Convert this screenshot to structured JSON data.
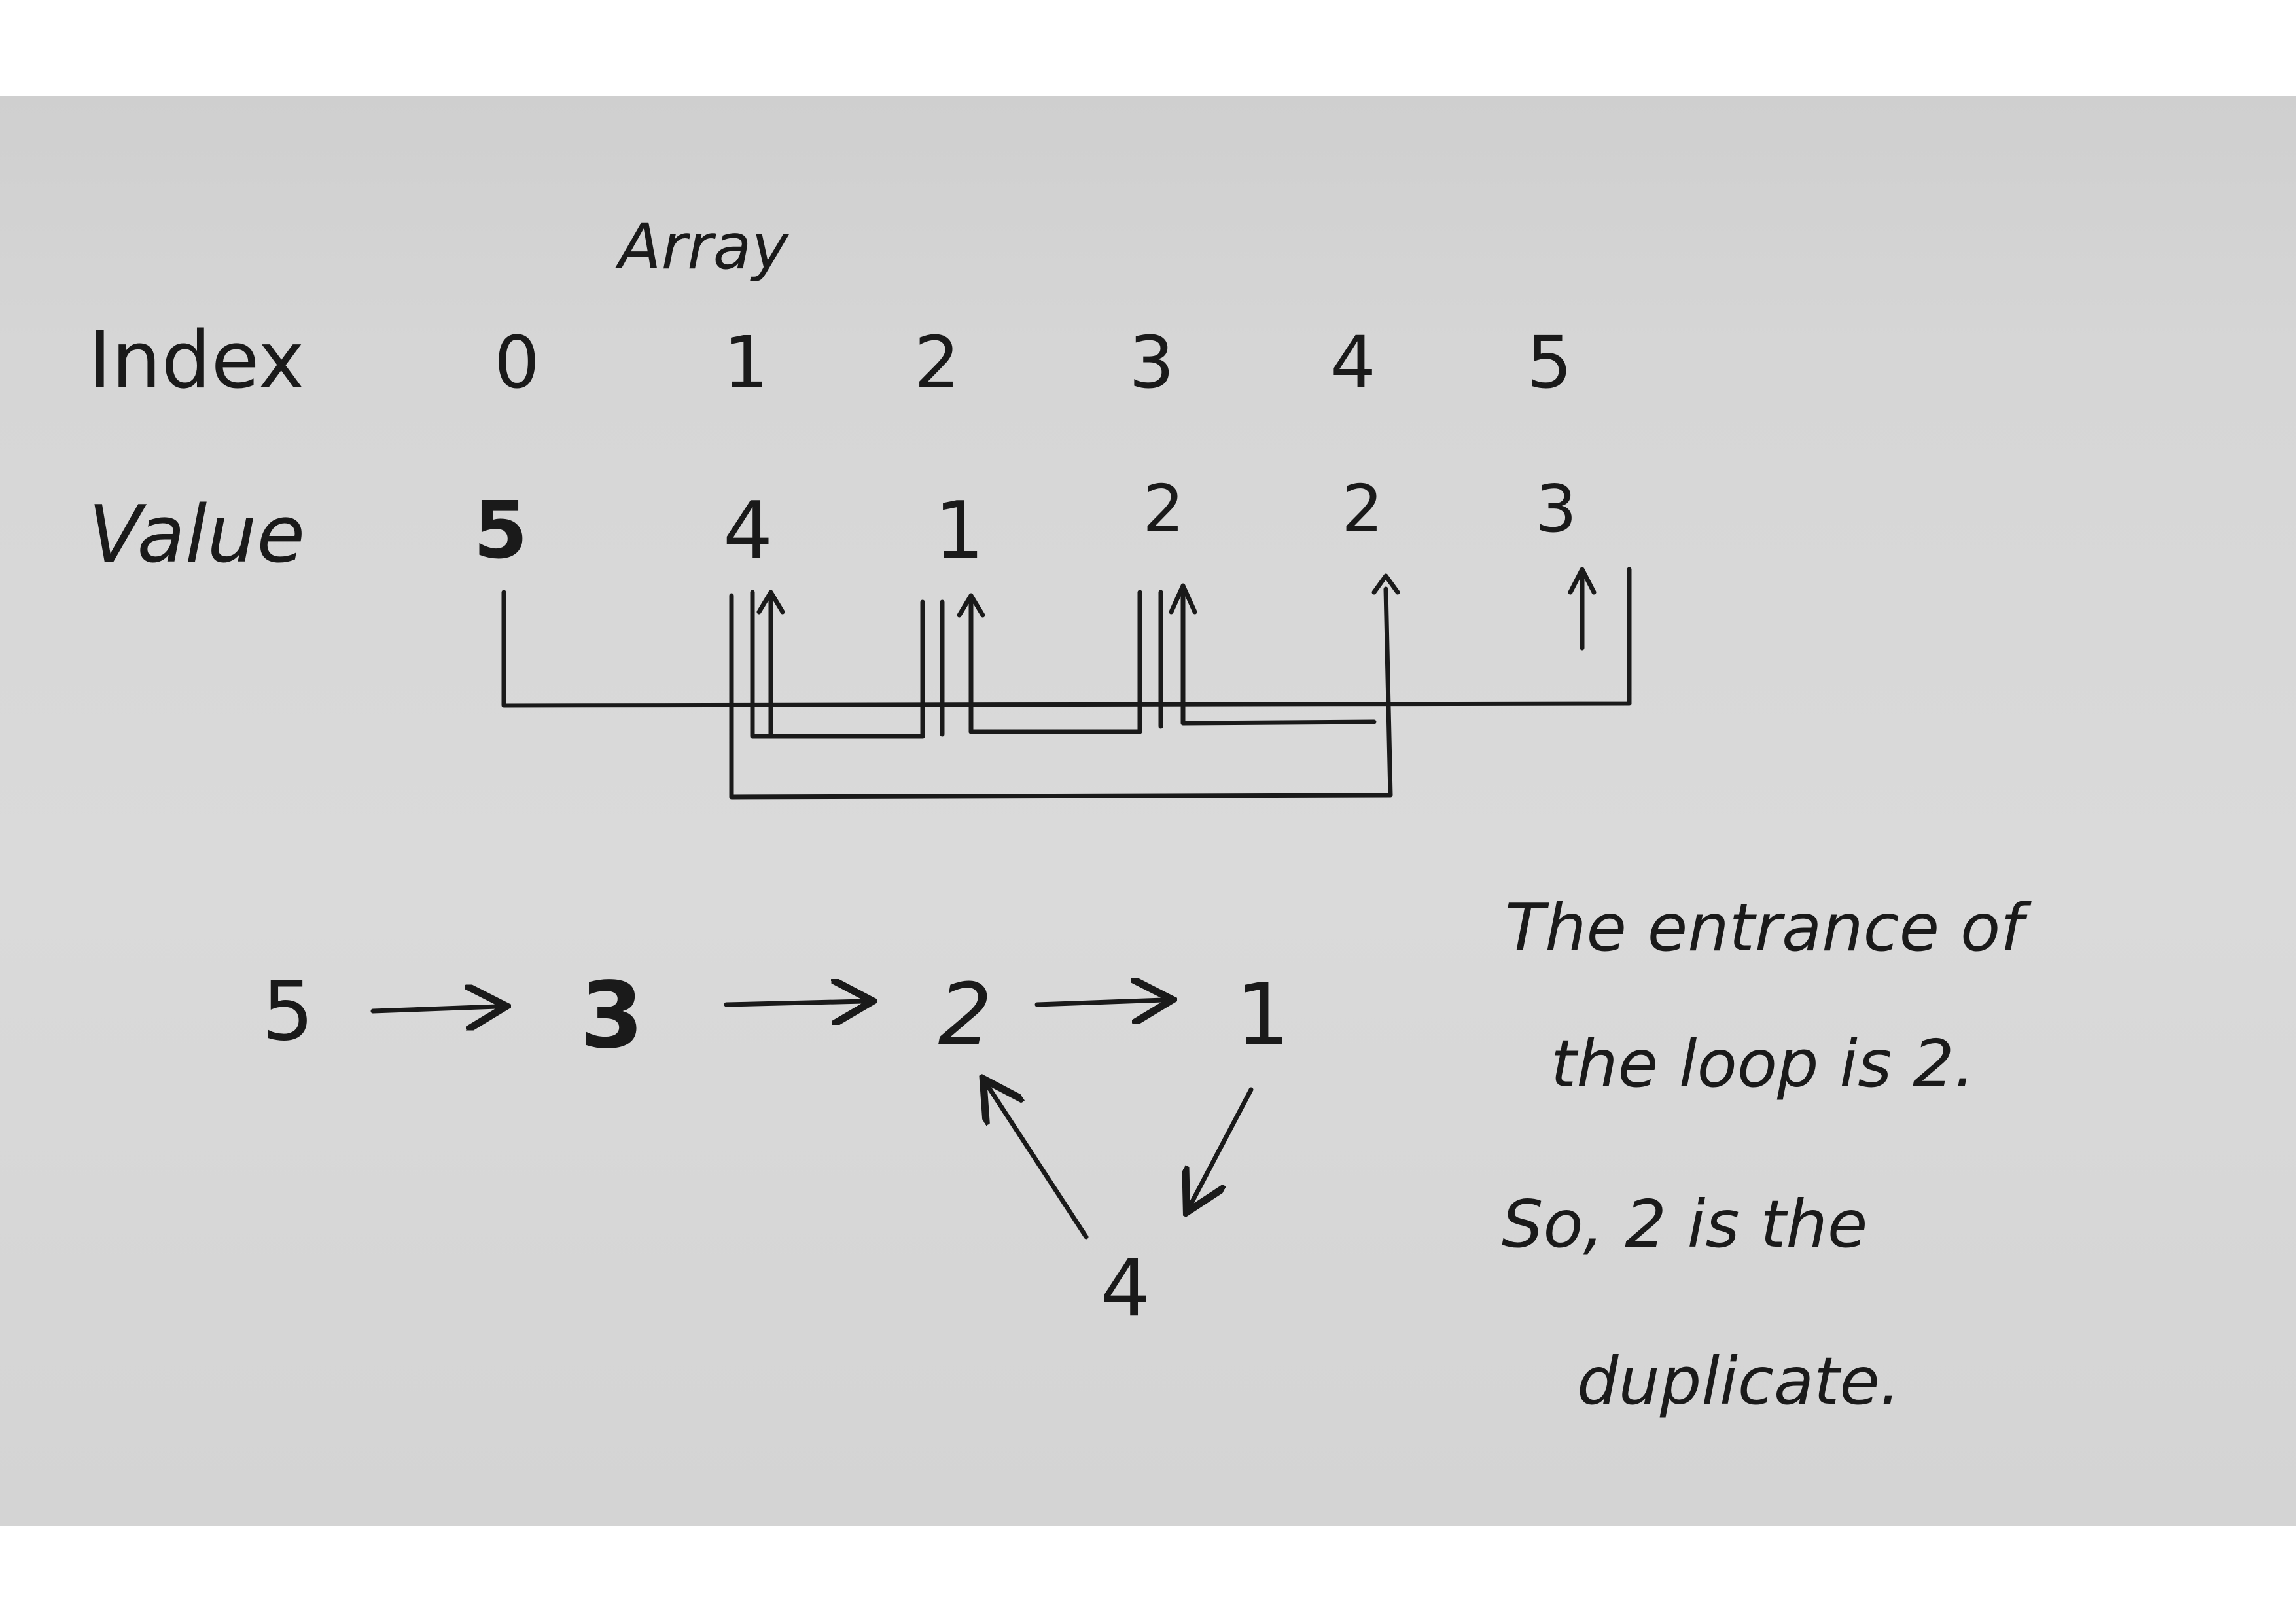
{
  "title": "Array",
  "table": {
    "index_label": "Index",
    "value_label": "Value",
    "indices": [
      "0",
      "1",
      "2",
      "3",
      "4",
      "5"
    ],
    "values": [
      "5",
      "4",
      "1",
      "2",
      "2",
      "3"
    ]
  },
  "chain": {
    "nodes": [
      "5",
      "3",
      "2",
      "1",
      "4"
    ],
    "loop_node": "4"
  },
  "conclusion": {
    "line1": "The entrance of",
    "line2": "the loop is 2.",
    "line3": "So, 2 is the",
    "line4": "duplicate."
  }
}
